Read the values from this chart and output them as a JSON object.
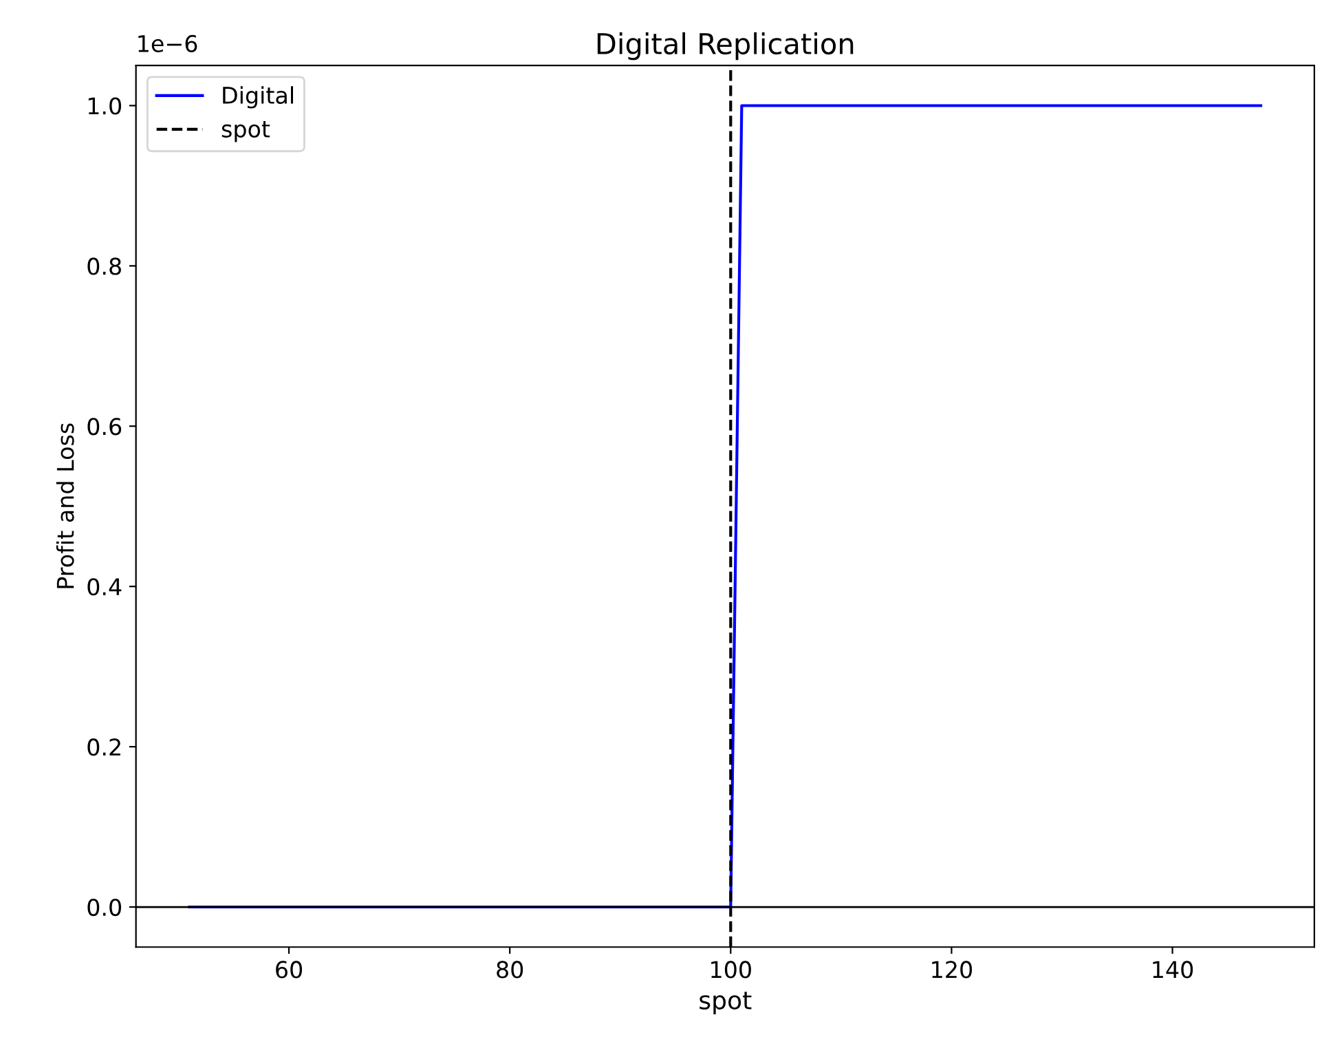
{
  "chart_data": {
    "type": "line",
    "title": "Digital Replication",
    "xlabel": "spot",
    "ylabel": "Profit and Loss",
    "x": [
      51,
      100,
      101,
      148
    ],
    "series": [
      {
        "name": "Digital",
        "color": "#0000ff",
        "values": [
          0,
          0,
          1.0,
          1.0
        ]
      }
    ],
    "ref_lines": [
      {
        "axis": "x",
        "value": 100,
        "label": "spot",
        "color": "#000000",
        "line_style": "dashed"
      },
      {
        "axis": "y",
        "value": 0,
        "color": "#000000",
        "line_style": "solid"
      }
    ],
    "xlim": [
      46.15,
      152.85
    ],
    "xticks": [
      60,
      80,
      100,
      120,
      140
    ],
    "ylim": [
      -0.05,
      1.05
    ],
    "yticks": [
      {
        "value": 0,
        "label": "0.0"
      },
      0.2,
      0.4,
      0.6,
      0.8,
      {
        "value": 1,
        "label": "1.0"
      }
    ],
    "annotations": [
      "1e−6"
    ],
    "legend": "top left",
    "grid": false,
    "marker": "none",
    "line_style": "solid"
  }
}
